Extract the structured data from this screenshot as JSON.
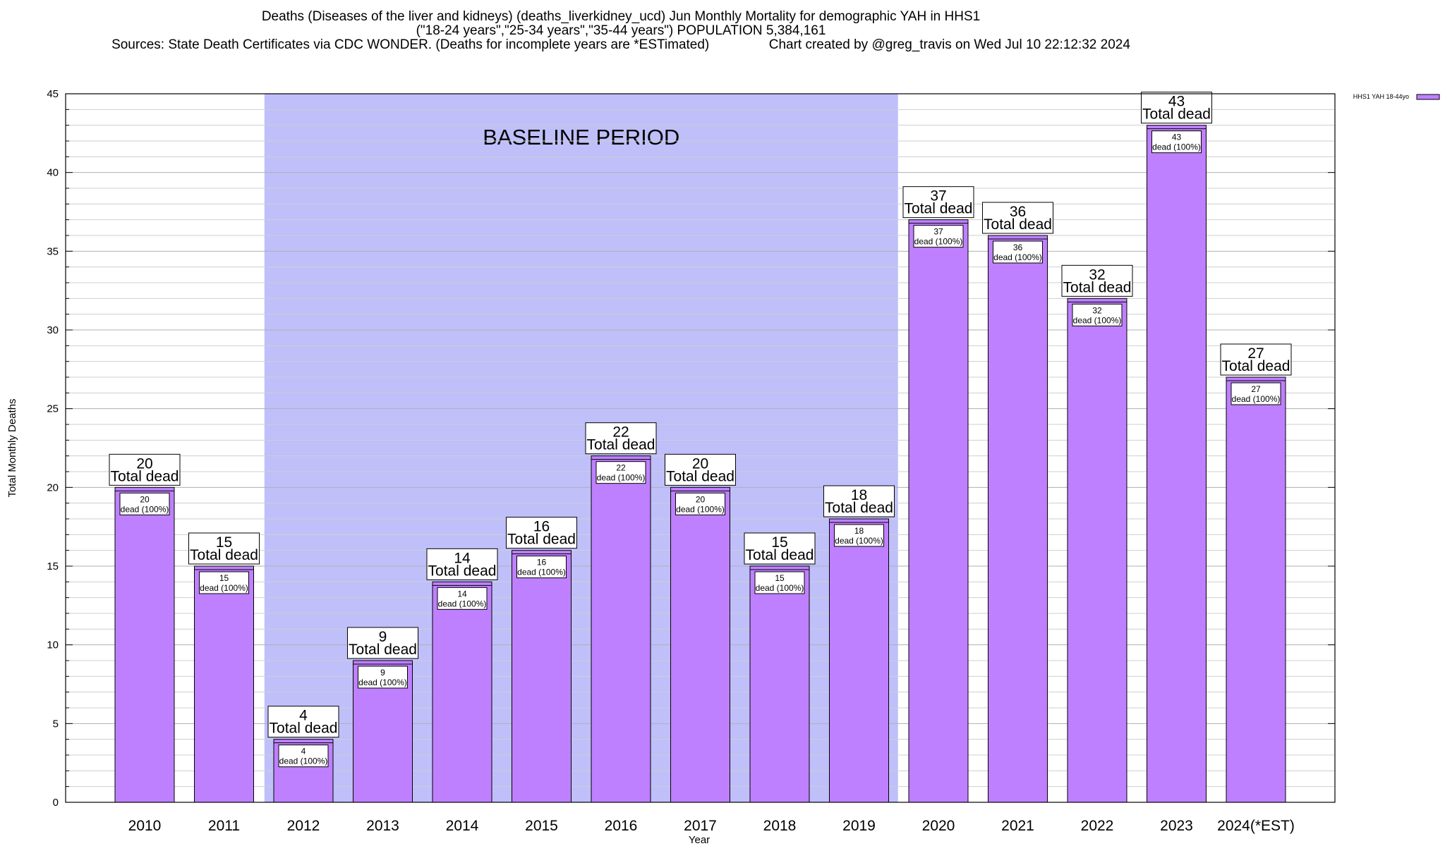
{
  "title_lines": [
    "Deaths (Diseases of the liver and kidneys) (deaths_liverkidney_ucd) Jun Monthly Mortality for demographic YAH in HHS1",
    "(\"18-24 years\",\"25-34 years\",\"35-44 years\") POPULATION 5,384,161",
    "Sources: State Death Certificates via CDC WONDER. (Deaths for incomplete years are *ESTimated)                Chart created by @greg_travis on Wed Jul 10 22:12:32 2024"
  ],
  "colors": {
    "bar": "#bf80ff",
    "baseline_shade": "#bfbffa",
    "legend_swatch": "#bf80ff"
  },
  "chart_data": {
    "type": "bar",
    "categories": [
      "2010",
      "2011",
      "2012",
      "2013",
      "2014",
      "2015",
      "2016",
      "2017",
      "2018",
      "2019",
      "2020",
      "2021",
      "2022",
      "2023",
      "2024(*EST)"
    ],
    "series": [
      {
        "name": "HHS1 YAH 18-44yo",
        "values": [
          20,
          15,
          4,
          9,
          14,
          16,
          22,
          20,
          15,
          18,
          37,
          36,
          32,
          43,
          27
        ]
      }
    ],
    "total_label_suffix": "Total dead",
    "inner_label_suffix": "dead (100%)",
    "xlabel": "Year",
    "ylabel": "Total Monthly Deaths",
    "ylim": [
      0,
      45
    ],
    "yticks": [
      0,
      5,
      10,
      15,
      20,
      25,
      30,
      35,
      40,
      45
    ],
    "grid": true,
    "legend_position": "top-right",
    "baseline_period": {
      "label": "BASELINE PERIOD",
      "from_category": "2012",
      "to_category": "2019"
    }
  }
}
